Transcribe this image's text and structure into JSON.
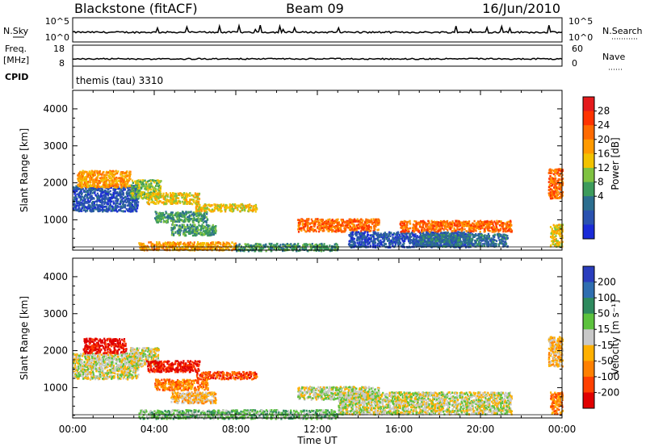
{
  "header": {
    "title": "Blackstone (fitACF)",
    "beam": "Beam 09",
    "date": "16/Jun/2010"
  },
  "panels": {
    "nsky": {
      "label_left": "N.Sky",
      "label_right": "N.Search",
      "ticks_left": [
        "10^5",
        "10^0"
      ],
      "ticks_right": [
        "10^5",
        "10^0"
      ]
    },
    "freq": {
      "label_left_1": "Freq.",
      "label_left_2": "[MHz]",
      "label_right": "Nave",
      "ticks_left": [
        "18",
        "8"
      ],
      "ticks_right": [
        "60",
        "0"
      ]
    },
    "cpid": {
      "label": "CPID",
      "value": "themis (tau) 3310"
    }
  },
  "colorbars": {
    "power": {
      "label": "Power [dB]",
      "ticks": [
        "28",
        "24",
        "20",
        "16",
        "12",
        "8",
        "4"
      ],
      "colors": [
        "#e41a1c",
        "#ff3300",
        "#ff6a00",
        "#ff9a00",
        "#f2c200",
        "#7fc241",
        "#3d9b5c",
        "#2c6e8f",
        "#2a52b0",
        "#1a2bd8"
      ]
    },
    "velocity": {
      "label": "Velocity [m s⁻¹]",
      "ticks": [
        "200",
        "100",
        "50",
        "15",
        "-15",
        "-50",
        "-100",
        "-200"
      ],
      "colors": [
        "#2a3dbd",
        "#2f6eb0",
        "#2e8a5e",
        "#5cc23d",
        "#c8c8c8",
        "#ffb000",
        "#ff8000",
        "#ff4000",
        "#e00000"
      ]
    }
  },
  "chart_data": [
    {
      "type": "heatmap",
      "name": "power",
      "ylabel": "Slant Range [km]",
      "ylim": [
        180,
        4500
      ],
      "yticks": [
        "1000",
        "2000",
        "3000",
        "4000"
      ],
      "xlim": [
        0,
        24
      ],
      "regions": [
        {
          "t0": 0.0,
          "t1": 3.2,
          "r0": 1250,
          "r1": 1950,
          "level": 1
        },
        {
          "t0": 0.2,
          "t1": 2.8,
          "r0": 1900,
          "r1": 2350,
          "level": 6
        },
        {
          "t0": 2.8,
          "t1": 4.3,
          "r0": 1600,
          "r1": 2100,
          "level": 4
        },
        {
          "t0": 3.6,
          "t1": 6.2,
          "r0": 1450,
          "r1": 1750,
          "level": 5
        },
        {
          "t0": 4.0,
          "t1": 6.6,
          "r0": 950,
          "r1": 1250,
          "level": 3
        },
        {
          "t0": 4.8,
          "t1": 7.0,
          "r0": 600,
          "r1": 900,
          "level": 3
        },
        {
          "t0": 6.0,
          "t1": 9.0,
          "r0": 1250,
          "r1": 1450,
          "level": 5
        },
        {
          "t0": 3.2,
          "t1": 8.0,
          "r0": 200,
          "r1": 420,
          "level": 6
        },
        {
          "t0": 8.0,
          "t1": 13.0,
          "r0": 180,
          "r1": 380,
          "level": 3
        },
        {
          "t0": 11.0,
          "t1": 15.0,
          "r0": 700,
          "r1": 1050,
          "level": 7
        },
        {
          "t0": 13.5,
          "t1": 19.5,
          "r0": 280,
          "r1": 700,
          "level": 1
        },
        {
          "t0": 17.0,
          "t1": 21.3,
          "r0": 300,
          "r1": 650,
          "level": 2
        },
        {
          "t0": 16.0,
          "t1": 21.5,
          "r0": 700,
          "r1": 1000,
          "level": 7
        },
        {
          "t0": 23.3,
          "t1": 24.0,
          "r0": 1600,
          "r1": 2400,
          "level": 7
        },
        {
          "t0": 23.4,
          "t1": 24.0,
          "r0": 300,
          "r1": 900,
          "level": 5
        }
      ]
    },
    {
      "type": "heatmap",
      "name": "velocity",
      "ylabel": "Slant Range [km]",
      "ylim": [
        180,
        4500
      ],
      "yticks": [
        "1000",
        "2000",
        "3000",
        "4000"
      ],
      "xlim": [
        0,
        24
      ],
      "xticks": [
        "00:00",
        "04:00",
        "08:00",
        "12:00",
        "16:00",
        "20:00",
        "00:00"
      ],
      "xlabel": "Time UT",
      "regions": [
        {
          "t0": 0.0,
          "t1": 3.2,
          "r0": 1250,
          "r1": 1950,
          "level": 4
        },
        {
          "t0": 0.5,
          "t1": 2.6,
          "r0": 1950,
          "r1": 2350,
          "level": 8
        },
        {
          "t0": 2.8,
          "t1": 4.2,
          "r0": 1600,
          "r1": 2100,
          "level": 4
        },
        {
          "t0": 3.6,
          "t1": 6.2,
          "r0": 1450,
          "r1": 1750,
          "level": 8
        },
        {
          "t0": 6.0,
          "t1": 9.0,
          "r0": 1250,
          "r1": 1450,
          "level": 7
        },
        {
          "t0": 4.0,
          "t1": 6.6,
          "r0": 950,
          "r1": 1250,
          "level": 6
        },
        {
          "t0": 4.8,
          "t1": 7.0,
          "r0": 600,
          "r1": 900,
          "level": 5
        },
        {
          "t0": 3.2,
          "t1": 13.0,
          "r0": 180,
          "r1": 420,
          "level": 3
        },
        {
          "t0": 13.0,
          "t1": 21.5,
          "r0": 300,
          "r1": 900,
          "level": 4
        },
        {
          "t0": 11.0,
          "t1": 15.0,
          "r0": 700,
          "r1": 1050,
          "level": 4
        },
        {
          "t0": 23.3,
          "t1": 24.0,
          "r0": 1600,
          "r1": 2400,
          "level": 5
        },
        {
          "t0": 23.4,
          "t1": 24.0,
          "r0": 300,
          "r1": 900,
          "level": 6
        }
      ]
    }
  ]
}
